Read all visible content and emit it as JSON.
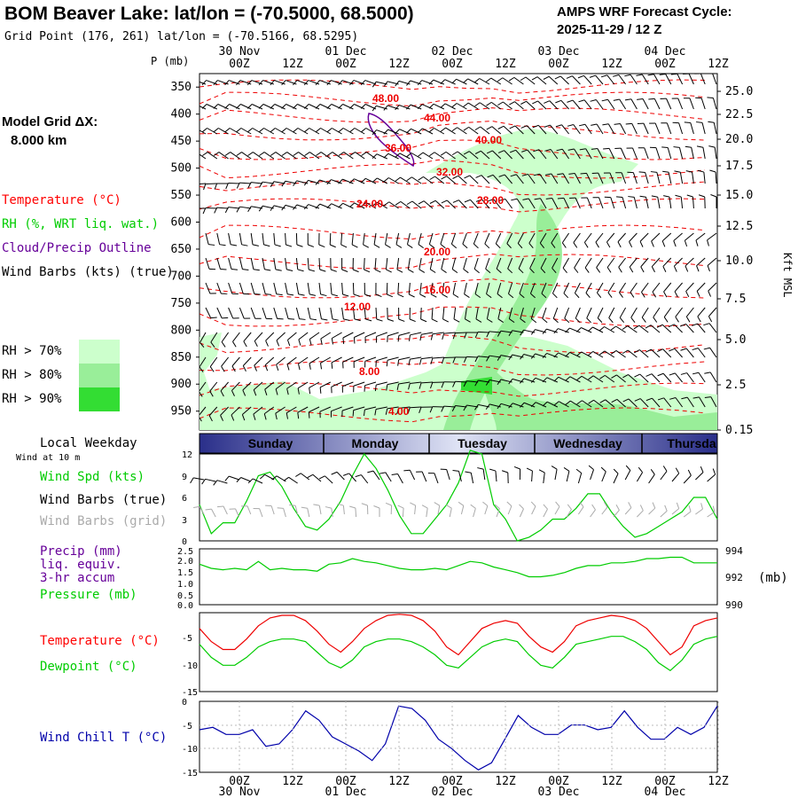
{
  "header": {
    "title": "BOM Beaver Lake:  lat/lon = (-70.5000, 68.5000)",
    "subtitle": "Grid Point (176, 261) lat/lon = (-70.5166, 68.5295)",
    "cycle_label": "AMPS WRF Forecast Cycle:",
    "cycle_value": "2025-11-29 / 12  Z"
  },
  "left_labels": {
    "model_grid": "Model Grid ΔX:",
    "model_grid_value": "8.000 km",
    "temperature": "Temperature (°C)",
    "rh": "RH (%, WRT liq. wat.)",
    "cloud": "Cloud/Precip Outline",
    "wind_barbs": "Wind Barbs (kts) (true)",
    "rh70": "RH > 70%",
    "rh80": "RH > 80%",
    "rh90": "RH > 90%",
    "weekday": "Local Weekday",
    "wind_at": "Wind at 10 m",
    "wind_spd": "Wind Spd (kts)",
    "wind_barbs_true": "Wind Barbs (true)",
    "wind_barbs_grid": "Wind Barbs (grid)",
    "precip": "Precip (mm)",
    "liq": "liq. equiv.",
    "accum": "3-hr accum",
    "pressure": "Pressure (mb)",
    "temperature2": "Temperature (°C)",
    "dewpoint": "Dewpoint (°C)",
    "wind_chill": "Wind Chill T (°C)",
    "p_axis_title": "P (mb)",
    "kft_title": "Kft MSL",
    "mb_unit": "(mb)"
  },
  "colors": {
    "temperature": "#ff0000",
    "rh": "#00cc00",
    "cloud": "#660099",
    "wind_chill": "#0000aa",
    "rh70": "#ccffcc",
    "rh80": "#99ee99",
    "rh90": "#33dd33"
  },
  "chart_data": [
    {
      "type": "area",
      "panel": "cross-section",
      "x_top_labels": [
        "00Z",
        "12Z",
        "00Z",
        "12Z",
        "00Z",
        "12Z",
        "00Z",
        "12Z",
        "00Z",
        "12Z"
      ],
      "date_labels": [
        "30 Nov",
        "01 Dec",
        "02 Dec",
        "03 Dec",
        "04 Dec"
      ],
      "pressure_ticks": [
        350,
        400,
        450,
        500,
        550,
        600,
        650,
        700,
        750,
        800,
        850,
        900,
        950
      ],
      "kft_ticks": [
        "25.0",
        "22.5",
        "20.0",
        "17.5",
        "15.0",
        "12.5",
        "10.0",
        "7.5",
        "5.0",
        "2.5",
        "0.15"
      ],
      "temperature_contour_labels": [
        "48.00",
        "44.00",
        "40.00",
        "36.00",
        "32.00",
        "28.00",
        "24.00",
        "20.00",
        "16.00",
        "12.00",
        "8.00",
        "4.00"
      ]
    },
    {
      "type": "table",
      "panel": "weekday",
      "days": [
        "Sunday",
        "Monday",
        "Tuesday",
        "Wednesday",
        "Thursda"
      ]
    },
    {
      "type": "line",
      "panel": "wind",
      "ylim": [
        0,
        12
      ],
      "yticks": [
        "12",
        "9",
        "6",
        "3",
        "0"
      ],
      "series": [
        {
          "name": "Wind Spd (kts)",
          "values": [
            5,
            1,
            2.5,
            2.5,
            5.5,
            9,
            9.5,
            7.5,
            4.5,
            2,
            1.5,
            3,
            5.5,
            9,
            12,
            10,
            7,
            3.5,
            1,
            1,
            3,
            5,
            8,
            12.5,
            12,
            5,
            3,
            0,
            0.5,
            1.5,
            3,
            3,
            4.5,
            6.5,
            6.5,
            4,
            2,
            0.5,
            1,
            2,
            3,
            4,
            6,
            6,
            3
          ]
        }
      ]
    },
    {
      "type": "line",
      "panel": "pressure",
      "ylim": [
        990,
        994
      ],
      "yticks_left": [
        "2.5",
        "2.0",
        "1.5",
        "1.0",
        "0.5",
        "0.0"
      ],
      "yticks_right": [
        "994",
        "992",
        "990"
      ],
      "series": [
        {
          "name": "Pressure (mb)",
          "values": [
            992.9,
            992.6,
            992.5,
            992.6,
            992.5,
            993.1,
            992.5,
            992.6,
            992.5,
            992.5,
            992.4,
            992.9,
            993.0,
            993.3,
            993.1,
            993.0,
            992.8,
            992.6,
            992.5,
            992.5,
            992.6,
            992.5,
            992.8,
            993.1,
            993.0,
            992.7,
            992.5,
            992.3,
            992.0,
            992.0,
            992.1,
            992.3,
            992.6,
            992.8,
            992.8,
            993.0,
            993.0,
            993.1,
            993.3,
            993.3,
            993.4,
            993.4,
            993.0,
            993.0,
            993.0
          ]
        }
      ]
    },
    {
      "type": "line",
      "panel": "temperature",
      "ylim": [
        -15,
        0
      ],
      "yticks": [
        "-5",
        "-10",
        "-15"
      ],
      "series": [
        {
          "name": "Temperature (°C)",
          "values": [
            -3,
            -5.5,
            -7,
            -7,
            -5,
            -2.5,
            -1,
            -0.5,
            -0.5,
            -1.5,
            -3.5,
            -6,
            -7.5,
            -5.5,
            -3,
            -1.5,
            -0.5,
            -0.3,
            -0.5,
            -1.5,
            -3.5,
            -6.5,
            -8,
            -5.5,
            -3,
            -2,
            -1.5,
            -2,
            -4.5,
            -6.5,
            -7.5,
            -5.5,
            -2.5,
            -1.5,
            -1,
            -0.5,
            -0.8,
            -1.5,
            -3,
            -5.5,
            -8,
            -6.5,
            -2.5,
            -1.5,
            -1
          ]
        },
        {
          "name": "Dewpoint (°C)",
          "values": [
            -6,
            -8.5,
            -10,
            -10,
            -8.5,
            -6.5,
            -5.5,
            -5,
            -5,
            -5.5,
            -7.5,
            -9.5,
            -10.5,
            -9,
            -6.5,
            -5.5,
            -5,
            -5,
            -5.5,
            -6.5,
            -8,
            -10,
            -10.5,
            -8.5,
            -6.5,
            -5.5,
            -5,
            -5.5,
            -8,
            -10,
            -10.5,
            -8.5,
            -6,
            -5.5,
            -5,
            -4.5,
            -4.5,
            -5.5,
            -7,
            -9.5,
            -11,
            -9,
            -6,
            -5,
            -4.5
          ]
        }
      ]
    },
    {
      "type": "line",
      "panel": "wind_chill",
      "ylim": [
        -15,
        0
      ],
      "yticks": [
        "0",
        "-5",
        "-10",
        "-15"
      ],
      "x_bottom_labels": [
        "00Z",
        "12Z",
        "00Z",
        "12Z",
        "00Z",
        "12Z",
        "00Z",
        "12Z",
        "00Z",
        "12Z"
      ],
      "series": [
        {
          "name": "Wind Chill T (°C)",
          "values": [
            -6,
            -5.5,
            -7,
            -7,
            -6,
            -9.5,
            -9,
            -6,
            -2,
            -4,
            -7.5,
            -9,
            -10.5,
            -12.5,
            -9,
            -1,
            -1.5,
            -4,
            -8,
            -10,
            -12.5,
            -14.5,
            -13,
            -8,
            -3,
            -5.5,
            -7,
            -7,
            -5,
            -5,
            -6,
            -5.5,
            -2,
            -5.5,
            -8,
            -8,
            -5.5,
            -7,
            -5.5,
            -1
          ]
        }
      ]
    }
  ]
}
